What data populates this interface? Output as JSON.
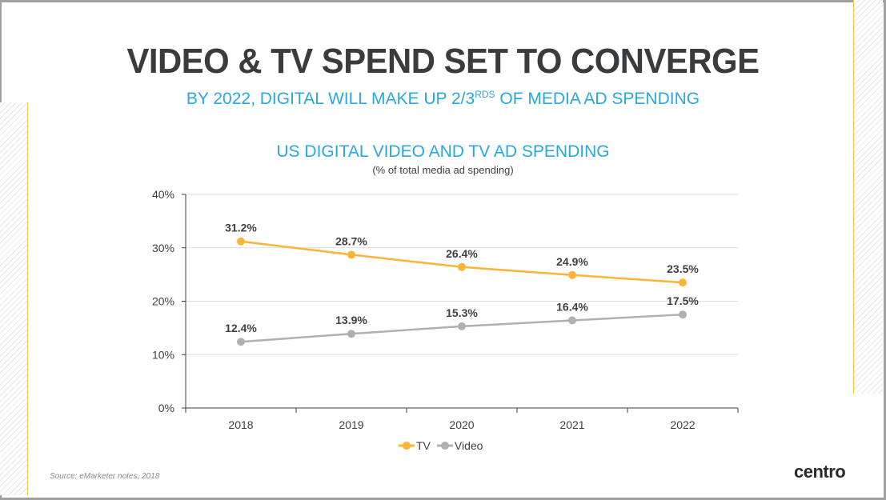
{
  "slide": {
    "title": "VIDEO & TV SPEND SET TO CONVERGE",
    "subtitle_pre": "BY 2022, DIGITAL WILL MAKE UP 2/3",
    "subtitle_sup": "RDS",
    "subtitle_post": " OF MEDIA AD SPENDING",
    "source": "Source: eMarketer notes, 2018",
    "logo": "centro"
  },
  "chart_data": {
    "type": "line",
    "title": "US DIGITAL VIDEO AND TV AD SPENDING",
    "subtitle": "(% of total media ad spending)",
    "categories": [
      "2018",
      "2019",
      "2020",
      "2021",
      "2022"
    ],
    "ylim": [
      0,
      40
    ],
    "yticks": [
      "0%",
      "10%",
      "20%",
      "30%",
      "40%"
    ],
    "grid": true,
    "legend": "bottom",
    "series": [
      {
        "name": "TV",
        "values": [
          31.2,
          28.7,
          26.4,
          24.9,
          23.5
        ],
        "labels": [
          "31.2%",
          "28.7%",
          "26.4%",
          "24.9%",
          "23.5%"
        ],
        "color": "#fbb536"
      },
      {
        "name": "Video",
        "values": [
          12.4,
          13.9,
          15.3,
          16.4,
          17.5
        ],
        "labels": [
          "12.4%",
          "13.9%",
          "15.3%",
          "16.4%",
          "17.5%"
        ],
        "color": "#b0b0b0"
      }
    ]
  }
}
